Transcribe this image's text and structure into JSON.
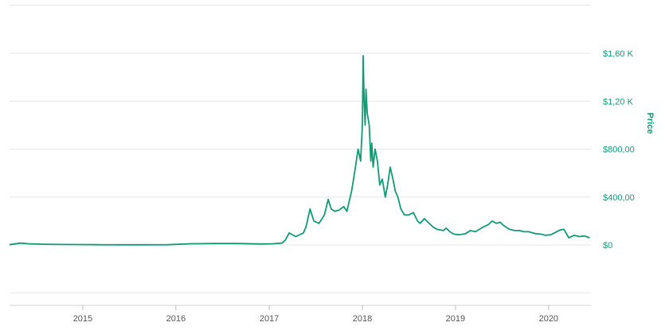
{
  "chart_data": {
    "type": "line",
    "title": "",
    "xlabel": "",
    "ylabel": "Price",
    "x_tick_labels": [
      "2015",
      "2016",
      "2017",
      "2018",
      "2019",
      "2020"
    ],
    "y_tick_labels": [
      "$0",
      "$400,00",
      "$800,00",
      "$1,20 K",
      "$1,60 K"
    ],
    "y_ticks": [
      0,
      400,
      800,
      1200,
      1600
    ],
    "ylim": [
      -500,
      2000
    ],
    "xlim": [
      "2014-03-20",
      "2020-06-15"
    ],
    "grid": true,
    "legend": "none",
    "colors": {
      "line": "#0f9b74",
      "axis_text": "#0f9b74",
      "grid": "#e6e6e6"
    },
    "series": [
      {
        "x": [
          "2014-03-20",
          "2014-05-01",
          "2014-06-01",
          "2014-08-01",
          "2014-10-01",
          "2014-12-01",
          "2015-03-01",
          "2015-06-01",
          "2015-09-01",
          "2015-12-01",
          "2016-03-01",
          "2016-06-01",
          "2016-09-01",
          "2016-12-01",
          "2017-01-15",
          "2017-02-20",
          "2017-03-05",
          "2017-03-20",
          "2017-04-15",
          "2017-05-15",
          "2017-05-25",
          "2017-06-10",
          "2017-06-25",
          "2017-07-15",
          "2017-08-05",
          "2017-08-20",
          "2017-09-01",
          "2017-09-15",
          "2017-10-01",
          "2017-10-20",
          "2017-11-01",
          "2017-11-20",
          "2017-12-05",
          "2017-12-15",
          "2017-12-25",
          "2018-01-01",
          "2018-01-04",
          "2018-01-08",
          "2018-01-12",
          "2018-01-15",
          "2018-01-20",
          "2018-01-28",
          "2018-02-03",
          "2018-02-07",
          "2018-02-12",
          "2018-02-20",
          "2018-03-01",
          "2018-03-10",
          "2018-03-20",
          "2018-04-01",
          "2018-04-10",
          "2018-04-20",
          "2018-05-01",
          "2018-05-10",
          "2018-05-20",
          "2018-06-01",
          "2018-06-15",
          "2018-07-01",
          "2018-07-20",
          "2018-08-05",
          "2018-08-15",
          "2018-09-01",
          "2018-09-20",
          "2018-10-05",
          "2018-10-20",
          "2018-11-15",
          "2018-11-25",
          "2018-12-10",
          "2018-12-25",
          "2019-01-15",
          "2019-02-10",
          "2019-03-01",
          "2019-03-20",
          "2019-04-05",
          "2019-04-20",
          "2019-05-10",
          "2019-05-25",
          "2019-06-10",
          "2019-06-25",
          "2019-07-10",
          "2019-08-01",
          "2019-08-20",
          "2019-09-10",
          "2019-09-25",
          "2019-10-15",
          "2019-11-10",
          "2019-12-01",
          "2019-12-20",
          "2020-01-10",
          "2020-02-01",
          "2020-02-15",
          "2020-03-01",
          "2020-03-12",
          "2020-03-20",
          "2020-04-10",
          "2020-05-01",
          "2020-05-20",
          "2020-06-10"
        ],
        "values": [
          2,
          15,
          10,
          6,
          4,
          3,
          2,
          1,
          1,
          2,
          10,
          12,
          12,
          8,
          10,
          15,
          40,
          100,
          70,
          100,
          150,
          300,
          200,
          180,
          250,
          380,
          300,
          280,
          290,
          320,
          280,
          450,
          650,
          800,
          700,
          1000,
          1580,
          1200,
          1000,
          1300,
          1100,
          1000,
          700,
          850,
          650,
          800,
          700,
          500,
          550,
          400,
          500,
          650,
          550,
          450,
          400,
          300,
          250,
          250,
          270,
          200,
          180,
          220,
          180,
          150,
          130,
          120,
          140,
          110,
          90,
          85,
          95,
          120,
          110,
          130,
          150,
          170,
          200,
          180,
          190,
          160,
          130,
          120,
          120,
          110,
          110,
          95,
          90,
          80,
          85,
          110,
          125,
          130,
          90,
          60,
          80,
          70,
          75,
          60
        ]
      }
    ]
  }
}
